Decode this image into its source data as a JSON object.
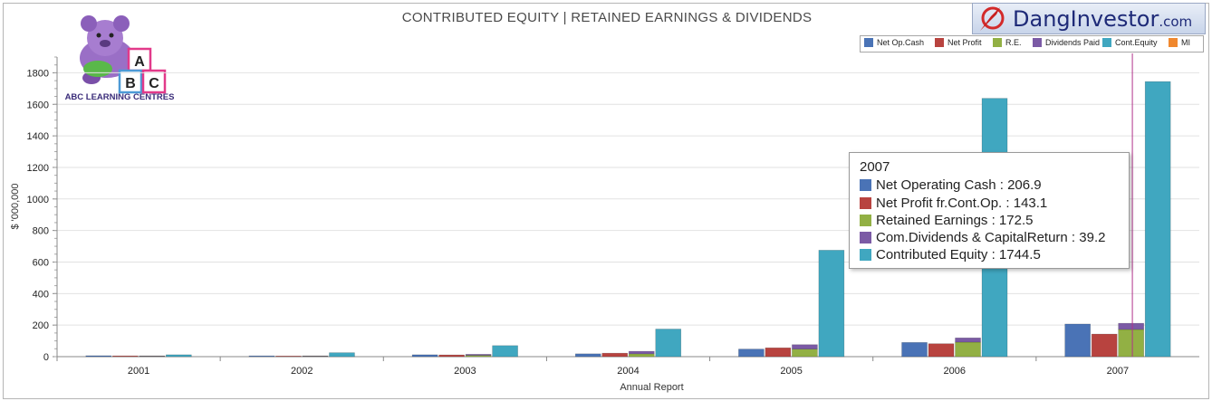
{
  "header": {
    "title": "CONTRIBUTED EQUITY | RETAINED EARNINGS & DIVIDENDS",
    "brand": "DangInvestor",
    "brand_suffix": ".com"
  },
  "logo": {
    "text": "ABC LEARNING CENTRES",
    "letters": [
      "A",
      "B",
      "C"
    ]
  },
  "icons": {
    "brand": "compass-icon",
    "logo": "teddy-bear-blocks-logo"
  },
  "colors": {
    "net_op_cash": "#4a73b6",
    "net_profit": "#b8433f",
    "re": "#92b044",
    "dividends": "#7b5aa5",
    "cont_equity": "#40a7c0",
    "mi": "#f0882e",
    "crosshair": "#b0338a"
  },
  "legend": [
    {
      "label": "Net Op.Cash",
      "color": "#4a73b6"
    },
    {
      "label": "Net Profit",
      "color": "#b8433f"
    },
    {
      "label": "R.E.",
      "color": "#92b044"
    },
    {
      "label": "Dividends Paid",
      "color": "#7b5aa5"
    },
    {
      "label": "Cont.Equity",
      "color": "#40a7c0"
    },
    {
      "label": "MI",
      "color": "#f0882e"
    }
  ],
  "tooltip": {
    "year": "2007",
    "rows": [
      {
        "label": "Net Operating Cash : 206.9",
        "color": "#4a73b6"
      },
      {
        "label": "Net Profit fr.Cont.Op. : 143.1",
        "color": "#b8433f"
      },
      {
        "label": "Retained Earnings : 172.5",
        "color": "#92b044"
      },
      {
        "label": "Com.Dividends & CapitalReturn : 39.2",
        "color": "#7b5aa5"
      },
      {
        "label": "Contributed Equity : 1744.5",
        "color": "#40a7c0"
      }
    ]
  },
  "chart_data": {
    "type": "bar",
    "title": "CONTRIBUTED EQUITY | RETAINED EARNINGS & DIVIDENDS",
    "xlabel": "Annual Report",
    "ylabel": "$ '000,000",
    "ylim": [
      0,
      1900
    ],
    "yticks": [
      0,
      200,
      400,
      600,
      800,
      1000,
      1200,
      1400,
      1600,
      1800
    ],
    "grid": true,
    "legend_position": "top-right",
    "categories": [
      "2001",
      "2002",
      "2003",
      "2004",
      "2005",
      "2006",
      "2007"
    ],
    "series": [
      {
        "name": "Net Op.Cash",
        "values": [
          6,
          5,
          12,
          18,
          48,
          90,
          206.9
        ]
      },
      {
        "name": "Net Profit",
        "values": [
          5,
          4,
          11,
          22,
          56,
          82,
          143.1
        ]
      },
      {
        "name": "R.E.",
        "values": [
          3,
          3,
          8,
          18,
          48,
          92,
          172.5
        ],
        "stack_group": "re_div"
      },
      {
        "name": "Dividends Paid",
        "values": [
          2,
          2,
          7,
          16,
          28,
          27,
          39.2
        ],
        "stack_group": "re_div"
      },
      {
        "name": "Cont.Equity",
        "values": [
          12,
          25,
          70,
          175,
          675,
          1638,
          1744.5
        ]
      },
      {
        "name": "MI",
        "values": [
          0,
          0,
          0,
          0,
          0,
          0,
          0
        ]
      }
    ]
  }
}
